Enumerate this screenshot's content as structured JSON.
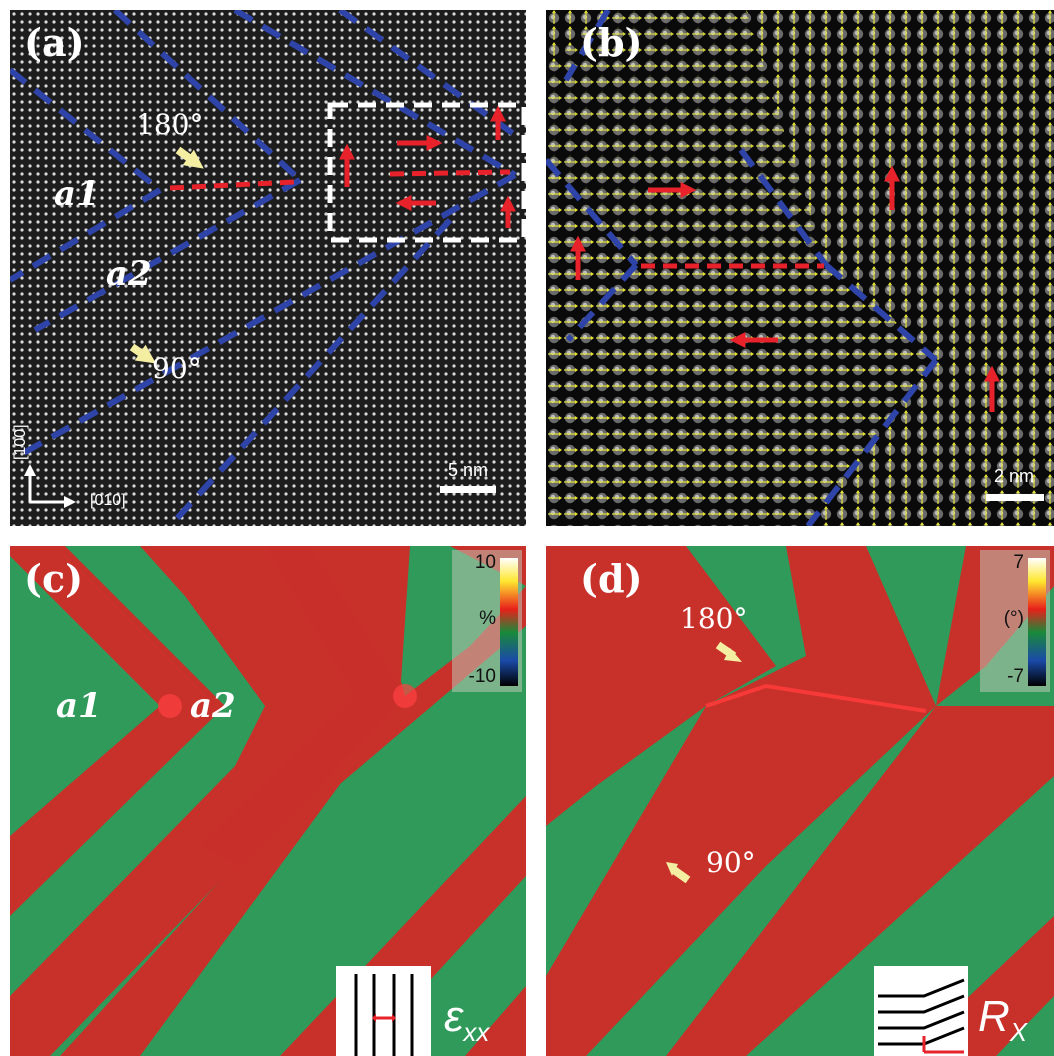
{
  "panels": {
    "a": {
      "label": "(a)",
      "angle_180": "180°",
      "angle_90": "90°",
      "domain_a1": "a1",
      "domain_a2": "a2",
      "scalebar": "5 nm",
      "axis_vertical": "[100]",
      "axis_horizontal": "[010]"
    },
    "b": {
      "label": "(b)",
      "scalebar": "2 nm"
    },
    "c": {
      "label": "(c)",
      "domain_a1": "a1",
      "domain_a2": "a2",
      "colorbar_max": "10",
      "colorbar_unit": "%",
      "colorbar_min": "-10",
      "symbol_main": "ε",
      "symbol_sub": "xx"
    },
    "d": {
      "label": "(d)",
      "angle_180": "180°",
      "angle_90": "90°",
      "colorbar_max": "7",
      "colorbar_unit": "(°)",
      "colorbar_min": "-7",
      "symbol_main": "R",
      "symbol_sub": "X"
    }
  },
  "colors": {
    "domain_wall": "#2f44a8",
    "wall_180": "#e8222a",
    "polarization_arrow": "#e8222a",
    "pointer_arrow": "#f4eea2",
    "strain_red": "#c8302a",
    "strain_green": "#2f9a5a",
    "displacement_vector": "#e4e43a"
  }
}
